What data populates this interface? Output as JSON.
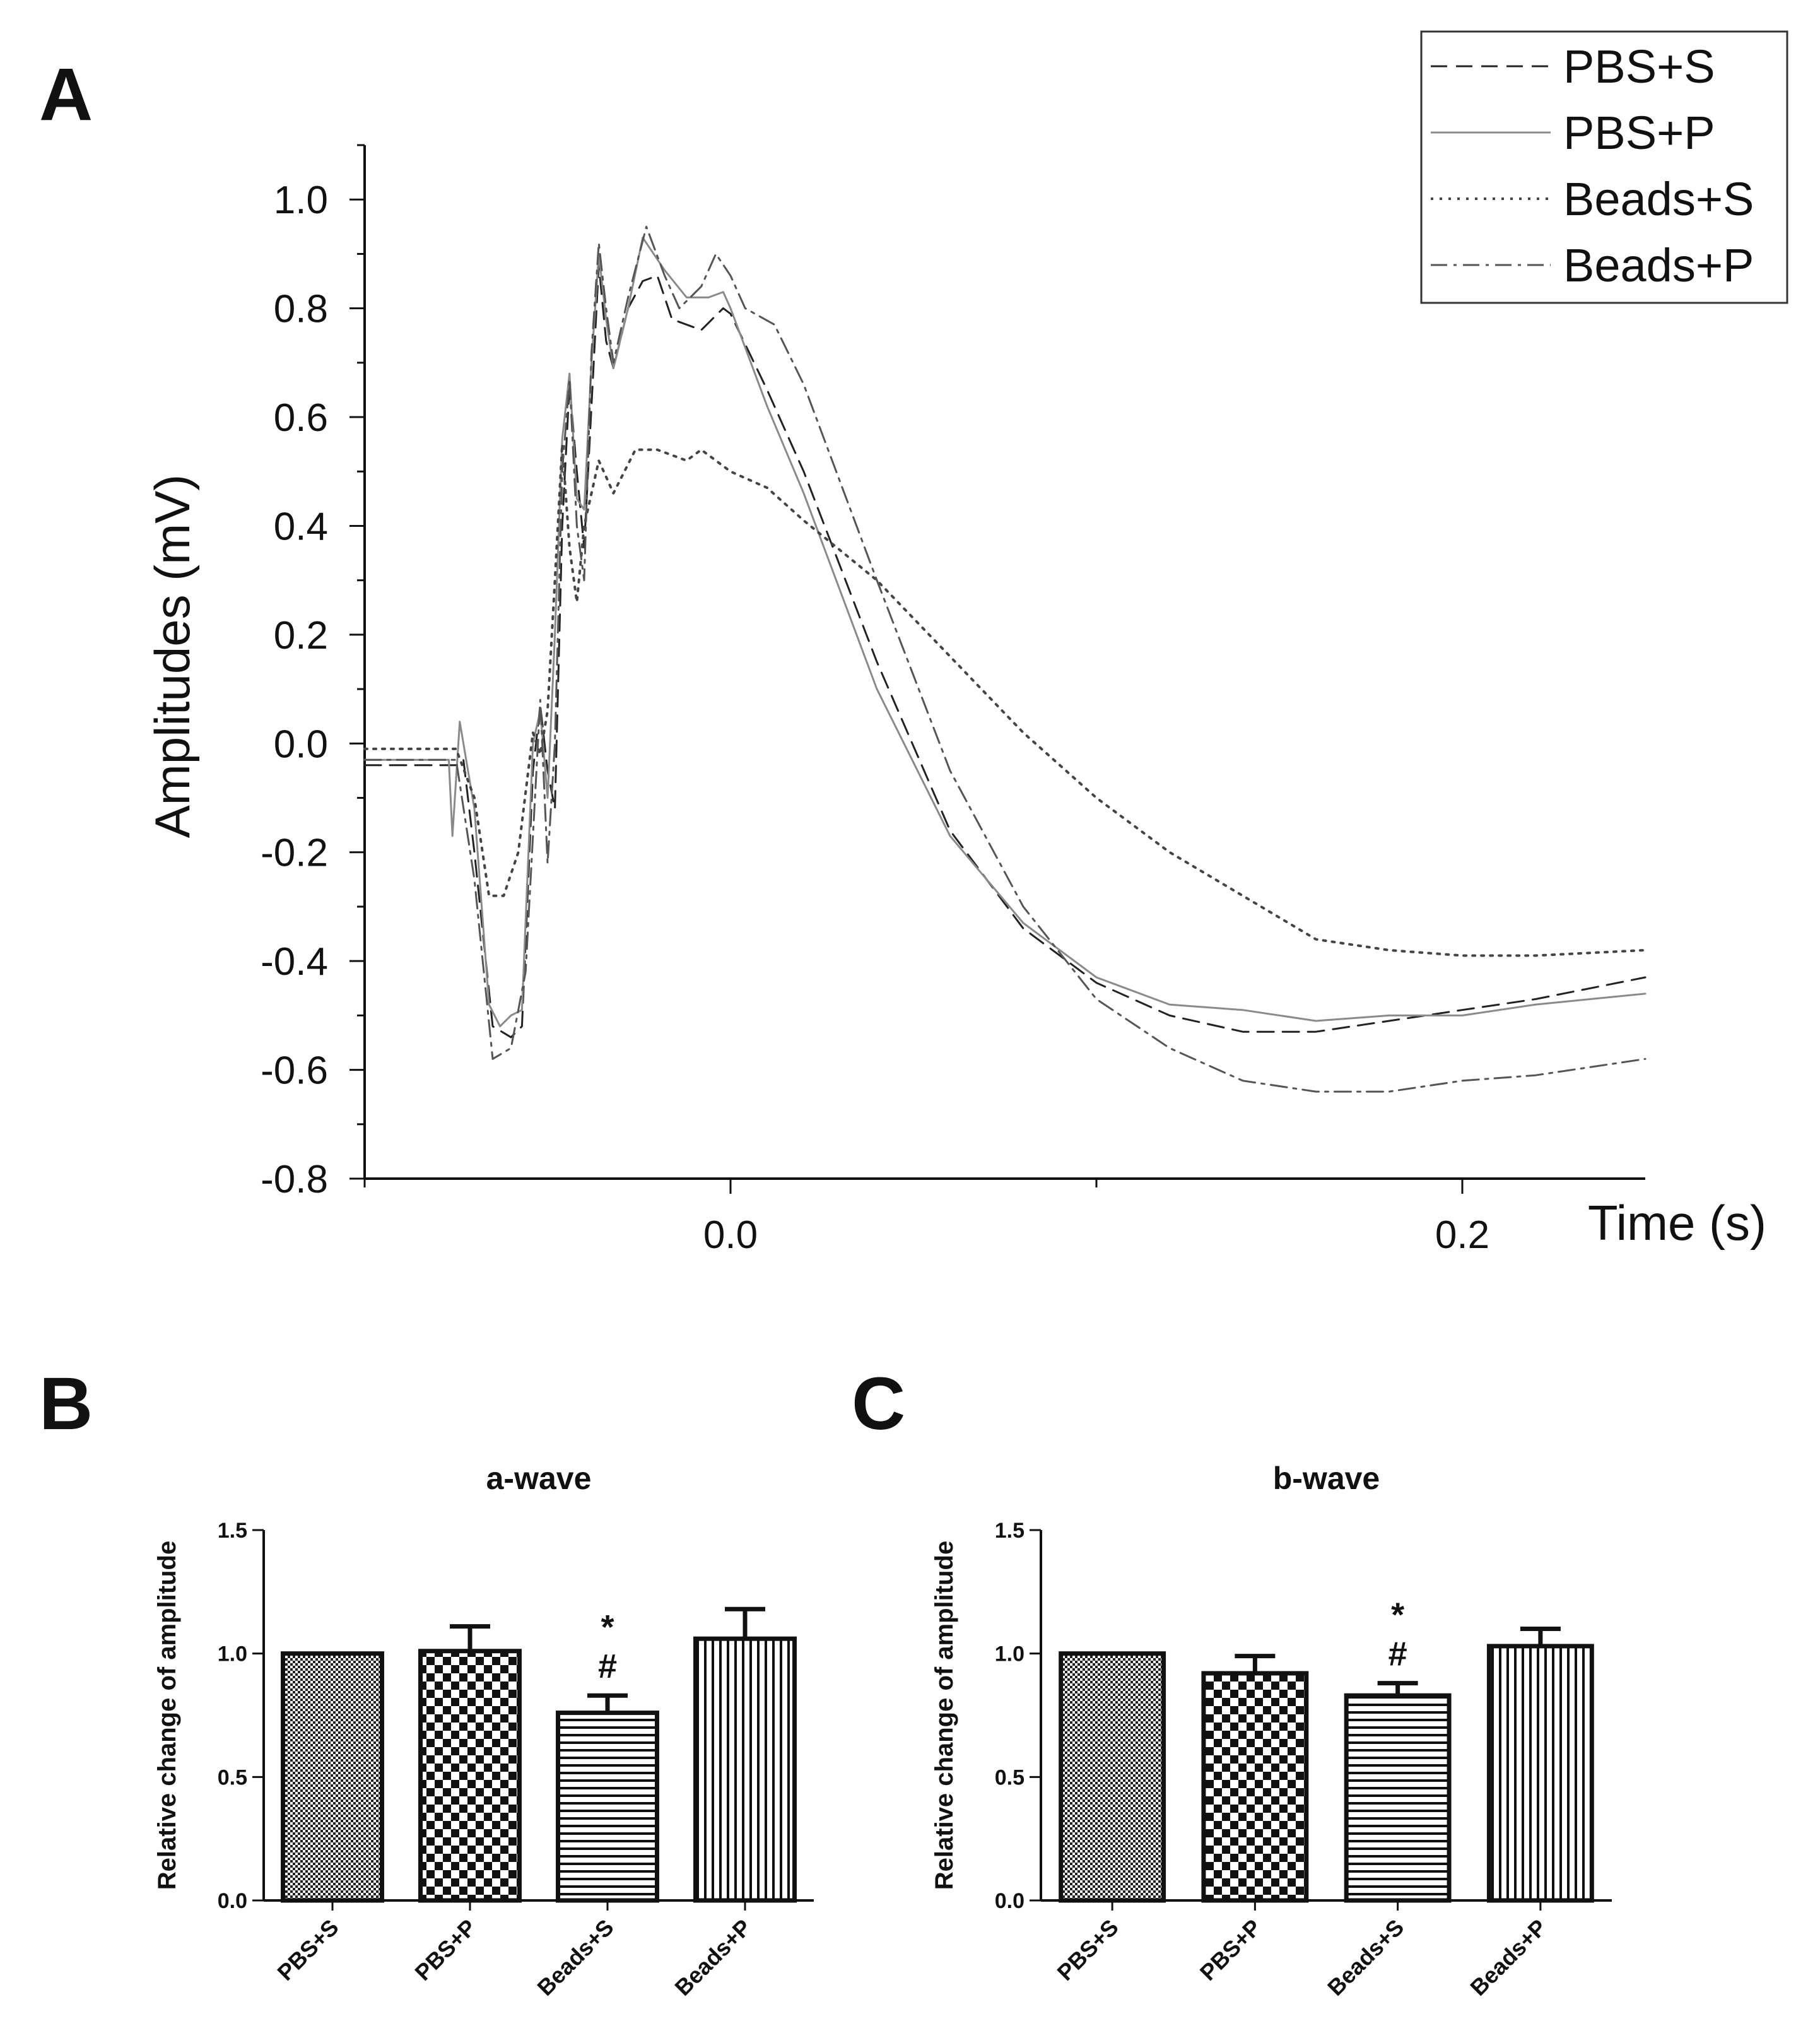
{
  "panels": {
    "a": "A",
    "b": "B",
    "c": "C"
  },
  "chart_data": [
    {
      "id": "A",
      "type": "line",
      "xlabel": "Time (s)",
      "ylabel": "Amplitudes (mV)",
      "xlim": [
        -0.1,
        0.25
      ],
      "ylim": [
        -0.8,
        1.1
      ],
      "xticks": [
        0.0,
        0.2
      ],
      "xtick_labels": [
        "0.0",
        "0.2"
      ],
      "yticks": [
        -0.8,
        -0.6,
        -0.4,
        -0.2,
        0.0,
        0.2,
        0.4,
        0.6,
        0.8,
        1.0
      ],
      "ytick_labels": [
        "-0.8",
        "-0.6",
        "-0.4",
        "-0.2",
        "0.0",
        "0.2",
        "0.4",
        "0.6",
        "0.8",
        "1.0"
      ],
      "legend_position": "top-right",
      "series": [
        {
          "name": "PBS+S",
          "style": "dashed",
          "color": "#222222",
          "points": [
            [
              -0.1,
              -0.04
            ],
            [
              -0.075,
              -0.04
            ],
            [
              -0.073,
              -0.03
            ],
            [
              -0.07,
              -0.2
            ],
            [
              -0.065,
              -0.52
            ],
            [
              -0.06,
              -0.54
            ],
            [
              -0.057,
              -0.52
            ],
            [
              -0.054,
              -0.05
            ],
            [
              -0.052,
              0.07
            ],
            [
              -0.05,
              -0.05
            ],
            [
              -0.048,
              -0.12
            ],
            [
              -0.046,
              0.4
            ],
            [
              -0.044,
              0.66
            ],
            [
              -0.042,
              0.5
            ],
            [
              -0.04,
              0.36
            ],
            [
              -0.038,
              0.62
            ],
            [
              -0.036,
              0.88
            ],
            [
              -0.034,
              0.74
            ],
            [
              -0.032,
              0.69
            ],
            [
              -0.028,
              0.8
            ],
            [
              -0.024,
              0.85
            ],
            [
              -0.02,
              0.86
            ],
            [
              -0.016,
              0.78
            ],
            [
              -0.008,
              0.76
            ],
            [
              -0.002,
              0.8
            ],
            [
              0.0,
              0.79
            ],
            [
              0.01,
              0.65
            ],
            [
              0.02,
              0.5
            ],
            [
              0.04,
              0.15
            ],
            [
              0.06,
              -0.16
            ],
            [
              0.08,
              -0.34
            ],
            [
              0.1,
              -0.44
            ],
            [
              0.12,
              -0.5
            ],
            [
              0.14,
              -0.53
            ],
            [
              0.16,
              -0.53
            ],
            [
              0.18,
              -0.51
            ],
            [
              0.2,
              -0.49
            ],
            [
              0.22,
              -0.47
            ],
            [
              0.25,
              -0.43
            ]
          ]
        },
        {
          "name": "PBS+P",
          "style": "solid",
          "color": "#8a8a8a",
          "points": [
            [
              -0.1,
              -0.03
            ],
            [
              -0.077,
              -0.03
            ],
            [
              -0.076,
              -0.17
            ],
            [
              -0.074,
              0.04
            ],
            [
              -0.07,
              -0.12
            ],
            [
              -0.066,
              -0.48
            ],
            [
              -0.063,
              -0.52
            ],
            [
              -0.06,
              -0.5
            ],
            [
              -0.057,
              -0.49
            ],
            [
              -0.054,
              0.0
            ],
            [
              -0.052,
              0.06
            ],
            [
              -0.05,
              -0.1
            ],
            [
              -0.048,
              0.2
            ],
            [
              -0.046,
              0.56
            ],
            [
              -0.044,
              0.68
            ],
            [
              -0.042,
              0.45
            ],
            [
              -0.04,
              0.43
            ],
            [
              -0.038,
              0.7
            ],
            [
              -0.036,
              0.9
            ],
            [
              -0.034,
              0.78
            ],
            [
              -0.032,
              0.69
            ],
            [
              -0.028,
              0.8
            ],
            [
              -0.024,
              0.93
            ],
            [
              -0.018,
              0.87
            ],
            [
              -0.012,
              0.82
            ],
            [
              -0.006,
              0.82
            ],
            [
              -0.002,
              0.83
            ],
            [
              0.0,
              0.8
            ],
            [
              0.01,
              0.62
            ],
            [
              0.02,
              0.46
            ],
            [
              0.04,
              0.1
            ],
            [
              0.06,
              -0.17
            ],
            [
              0.08,
              -0.33
            ],
            [
              0.1,
              -0.43
            ],
            [
              0.12,
              -0.48
            ],
            [
              0.14,
              -0.49
            ],
            [
              0.16,
              -0.51
            ],
            [
              0.18,
              -0.5
            ],
            [
              0.2,
              -0.5
            ],
            [
              0.22,
              -0.48
            ],
            [
              0.25,
              -0.46
            ]
          ]
        },
        {
          "name": "Beads+S",
          "style": "dotted",
          "color": "#444444",
          "points": [
            [
              -0.1,
              -0.01
            ],
            [
              -0.075,
              -0.01
            ],
            [
              -0.07,
              -0.1
            ],
            [
              -0.066,
              -0.28
            ],
            [
              -0.062,
              -0.28
            ],
            [
              -0.058,
              -0.2
            ],
            [
              -0.054,
              0.02
            ],
            [
              -0.052,
              -0.02
            ],
            [
              -0.05,
              0.06
            ],
            [
              -0.048,
              0.3
            ],
            [
              -0.046,
              0.55
            ],
            [
              -0.044,
              0.36
            ],
            [
              -0.042,
              0.26
            ],
            [
              -0.04,
              0.4
            ],
            [
              -0.036,
              0.52
            ],
            [
              -0.032,
              0.46
            ],
            [
              -0.026,
              0.54
            ],
            [
              -0.02,
              0.54
            ],
            [
              -0.012,
              0.52
            ],
            [
              -0.008,
              0.54
            ],
            [
              -0.004,
              0.52
            ],
            [
              0.0,
              0.5
            ],
            [
              0.01,
              0.47
            ],
            [
              0.02,
              0.41
            ],
            [
              0.04,
              0.3
            ],
            [
              0.06,
              0.16
            ],
            [
              0.08,
              0.02
            ],
            [
              0.1,
              -0.1
            ],
            [
              0.12,
              -0.2
            ],
            [
              0.14,
              -0.28
            ],
            [
              0.16,
              -0.36
            ],
            [
              0.18,
              -0.38
            ],
            [
              0.2,
              -0.39
            ],
            [
              0.22,
              -0.39
            ],
            [
              0.25,
              -0.38
            ]
          ]
        },
        {
          "name": "Beads+P",
          "style": "dashdot",
          "color": "#555555",
          "points": [
            [
              -0.1,
              -0.03
            ],
            [
              -0.075,
              -0.03
            ],
            [
              -0.07,
              -0.25
            ],
            [
              -0.065,
              -0.58
            ],
            [
              -0.06,
              -0.56
            ],
            [
              -0.056,
              -0.42
            ],
            [
              -0.052,
              0.08
            ],
            [
              -0.05,
              -0.22
            ],
            [
              -0.048,
              0.0
            ],
            [
              -0.046,
              0.5
            ],
            [
              -0.044,
              0.67
            ],
            [
              -0.042,
              0.4
            ],
            [
              -0.04,
              0.3
            ],
            [
              -0.038,
              0.72
            ],
            [
              -0.036,
              0.92
            ],
            [
              -0.034,
              0.8
            ],
            [
              -0.032,
              0.7
            ],
            [
              -0.028,
              0.82
            ],
            [
              -0.023,
              0.95
            ],
            [
              -0.018,
              0.86
            ],
            [
              -0.014,
              0.8
            ],
            [
              -0.008,
              0.84
            ],
            [
              -0.004,
              0.9
            ],
            [
              0.0,
              0.86
            ],
            [
              0.004,
              0.8
            ],
            [
              0.012,
              0.77
            ],
            [
              0.02,
              0.66
            ],
            [
              0.04,
              0.3
            ],
            [
              0.06,
              -0.05
            ],
            [
              0.08,
              -0.3
            ],
            [
              0.1,
              -0.47
            ],
            [
              0.12,
              -0.56
            ],
            [
              0.14,
              -0.62
            ],
            [
              0.16,
              -0.64
            ],
            [
              0.18,
              -0.64
            ],
            [
              0.2,
              -0.62
            ],
            [
              0.22,
              -0.61
            ],
            [
              0.25,
              -0.58
            ]
          ]
        }
      ]
    },
    {
      "id": "B",
      "type": "bar",
      "title": "a-wave",
      "ylabel": "Relative change of amplitude",
      "ylim": [
        0.0,
        1.5
      ],
      "yticks": [
        0.0,
        0.5,
        1.0,
        1.5
      ],
      "ytick_labels": [
        "0.0",
        "0.5",
        "1.0",
        "1.5"
      ],
      "categories": [
        "PBS+S",
        "PBS+P",
        "Beads+S",
        "Beads+P"
      ],
      "values": [
        1.0,
        1.01,
        0.76,
        1.06
      ],
      "errors": [
        0.0,
        0.1,
        0.07,
        0.12
      ],
      "patterns": [
        "fine-check",
        "checker",
        "hlines",
        "vlines"
      ],
      "annotations": [
        {
          "category": "Beads+S",
          "symbols": [
            "*",
            "#"
          ]
        }
      ]
    },
    {
      "id": "C",
      "type": "bar",
      "title": "b-wave",
      "ylabel": "Relative change of amplitude",
      "ylim": [
        0.0,
        1.5
      ],
      "yticks": [
        0.0,
        0.5,
        1.0,
        1.5
      ],
      "ytick_labels": [
        "0.0",
        "0.5",
        "1.0",
        "1.5"
      ],
      "categories": [
        "PBS+S",
        "PBS+P",
        "Beads+S",
        "Beads+P"
      ],
      "values": [
        1.0,
        0.92,
        0.83,
        1.03
      ],
      "errors": [
        0.0,
        0.07,
        0.05,
        0.07
      ],
      "patterns": [
        "fine-check",
        "checker",
        "hlines",
        "vlines"
      ],
      "annotations": [
        {
          "category": "Beads+S",
          "symbols": [
            "*",
            "#"
          ]
        }
      ]
    }
  ]
}
